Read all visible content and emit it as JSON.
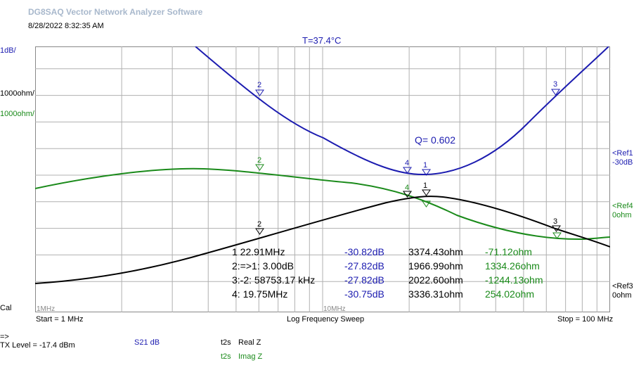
{
  "app": {
    "title": "DG8SAQ Vector Network Analyzer Software",
    "datetime": "8/28/2022   8:32:35 AM",
    "temperature": "T=37.4°C"
  },
  "scales": {
    "s21": "1dB/",
    "realz": "1000ohm/",
    "imagz": "1000ohm/",
    "cal": "Cal"
  },
  "refs": {
    "ref1": {
      "label": "<Ref1",
      "value": "-30dB",
      "color": "#1c1cb0"
    },
    "ref4": {
      "label": "<Ref4",
      "value": "0ohm",
      "color": "#1a8a1a"
    },
    "ref3": {
      "label": "<Ref3",
      "value": "0ohm",
      "color": "#000000"
    }
  },
  "axis": {
    "tick_1mhz": "1MHz",
    "tick_10mhz": "10MHz",
    "start": "Start = 1 MHz",
    "mode": "Log Frequency Sweep",
    "stop": "Stop = 100 MHz"
  },
  "q_label": "Q= 0.602",
  "markers": [
    {
      "id": "1",
      "label": "1   22.91MHz",
      "s21": "-30.82dB",
      "realz": "3374.43ohm",
      "imagz": "-71.12ohm"
    },
    {
      "id": "2",
      "label": "2:=>1:  3.00dB",
      "s21": "-27.82dB",
      "realz": "1966.99ohm",
      "imagz": "1334.26ohm"
    },
    {
      "id": "3",
      "label": "3:-2:  58753.17 kHz",
      "s21": "-27.82dB",
      "realz": "2022.60ohm",
      "imagz": "-1244.13ohm"
    },
    {
      "id": "4",
      "label": "4: 19.75MHz",
      "s21": "-30.75dB",
      "realz": "3336.31ohm",
      "imagz": "254.02ohm"
    }
  ],
  "status": {
    "arrow": "=>",
    "tx_level": "TX Level = -17.4 dBm",
    "trace1": {
      "mode": "S21  dB",
      "color": "#1c1cb0"
    },
    "trace2": {
      "prefix": "t2s",
      "mode": "Real Z",
      "color": "#000000"
    },
    "trace3": {
      "prefix": "t2s",
      "mode": "Imag Z",
      "color": "#1a8a1a"
    }
  },
  "colors": {
    "s21": "#1c1cb0",
    "realz": "#000000",
    "imagz": "#1a8a1a",
    "grid": "#b0b0b0"
  }
}
